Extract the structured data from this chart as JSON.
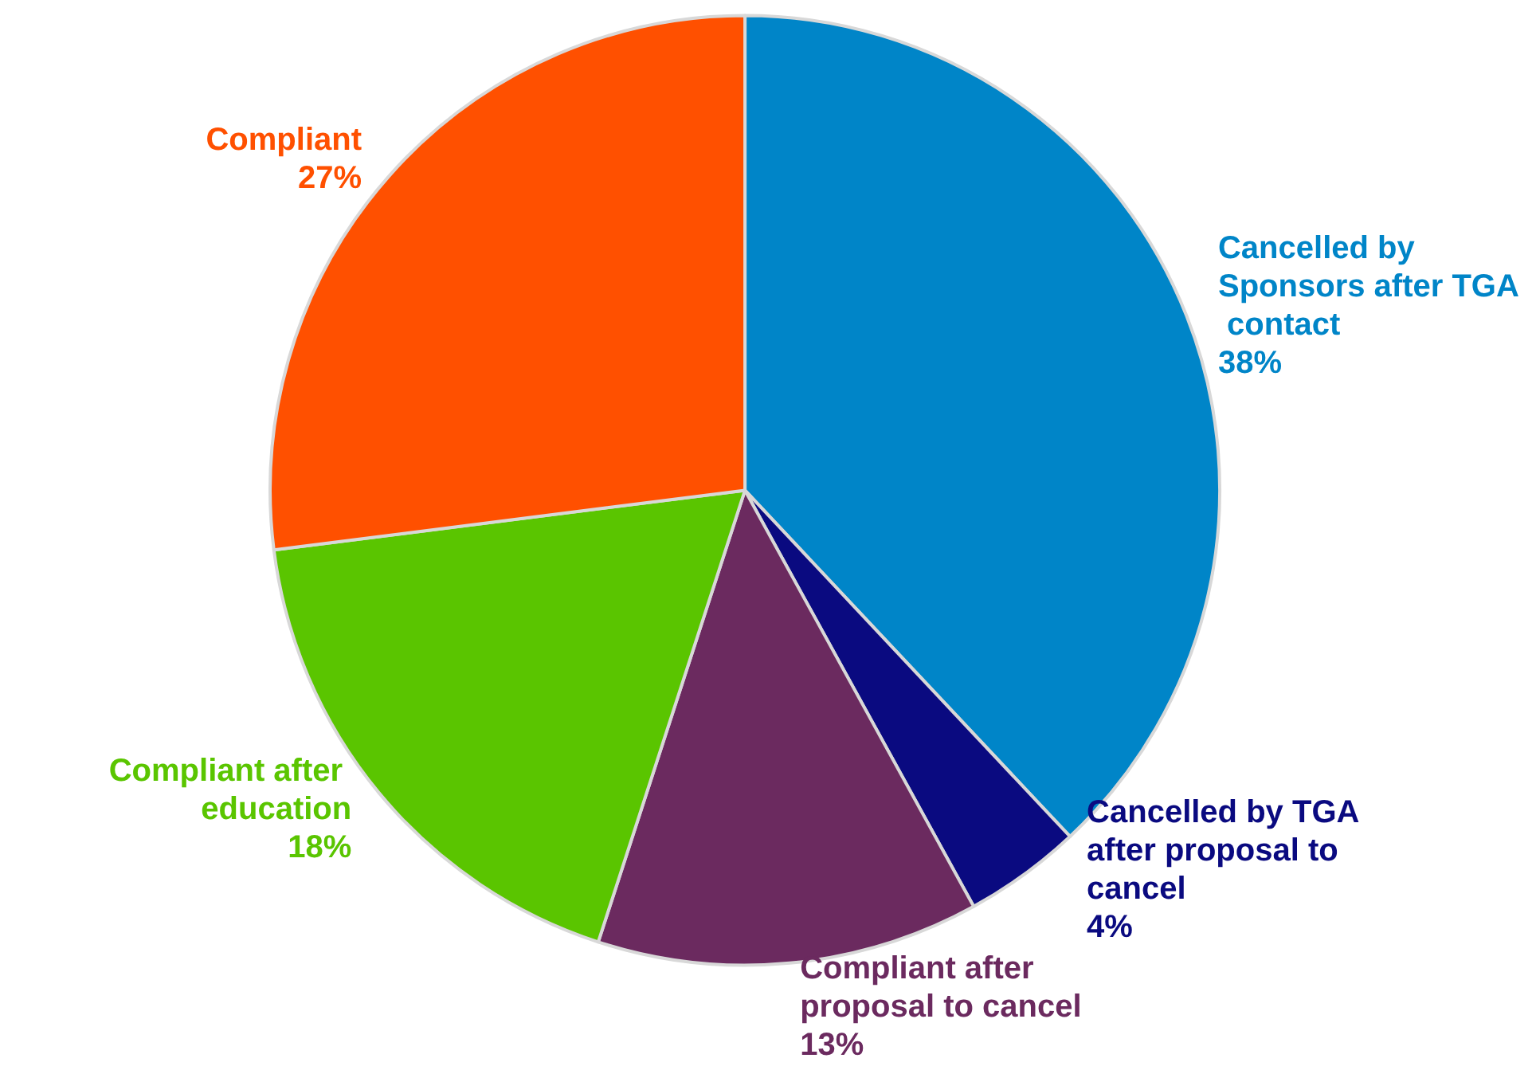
{
  "chart_data": {
    "type": "pie",
    "categories": [
      "Cancelled by Sponsors after TGA contact",
      "Cancelled by TGA after proposal to cancel",
      "Compliant after proposal to cancel",
      "Compliant after education",
      "Compliant"
    ],
    "values": [
      38,
      4,
      13,
      18,
      27
    ],
    "value_labels": [
      "38%",
      "4%",
      "13%",
      "18%",
      "27%"
    ],
    "colors": [
      "#0085c8",
      "#0a0a80",
      "#6b2a5f",
      "#5ac500",
      "#ff5000"
    ],
    "legend": false
  }
}
